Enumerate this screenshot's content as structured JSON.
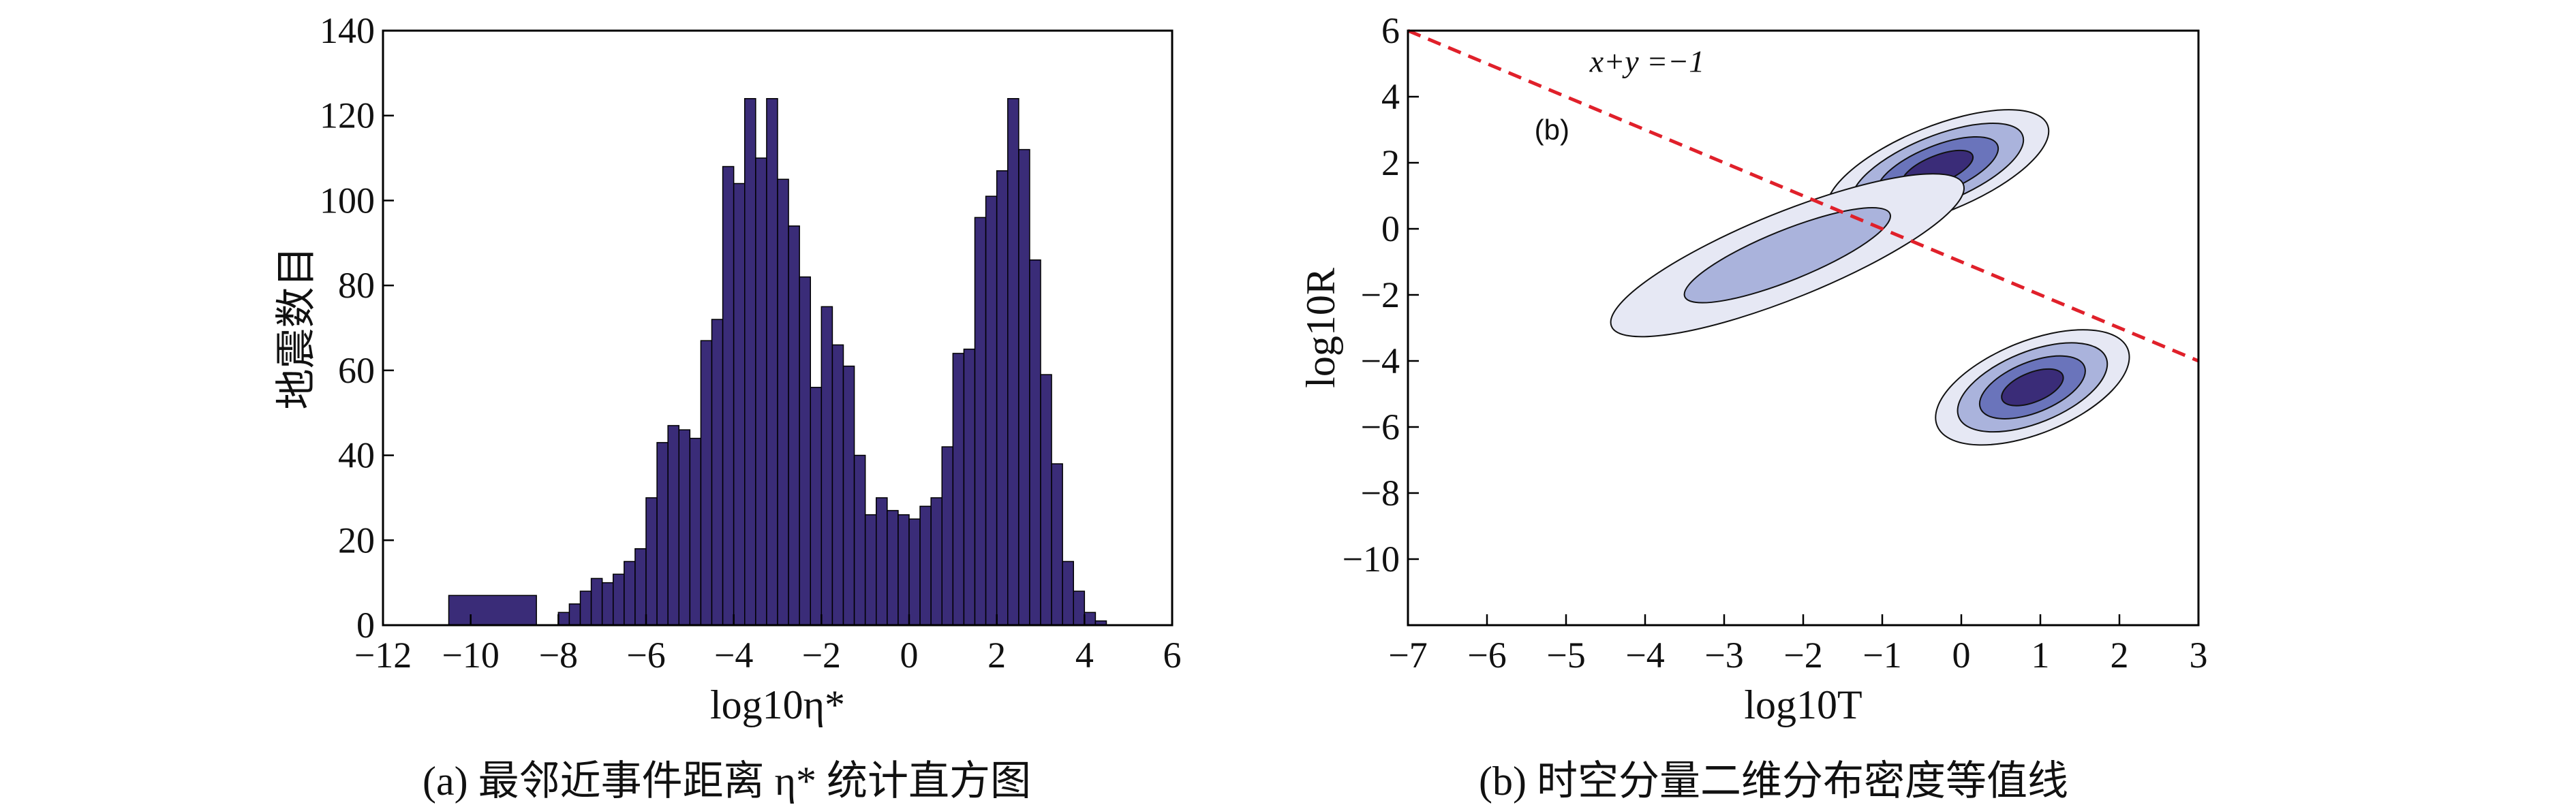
{
  "captions": {
    "left": "(a) 最邻近事件距离 η* 统计直方图",
    "right": "(b) 时空分量二维分布密度等值线"
  },
  "chart_data": [
    {
      "type": "bar",
      "title": "",
      "xlabel": "log10η*",
      "ylabel": "地震数目",
      "xlim": [
        -12,
        6
      ],
      "ylim": [
        0,
        140
      ],
      "xticks": [
        "−12",
        "−10",
        "−8",
        "−6",
        "−4",
        "−2",
        "0",
        "2",
        "4",
        "6"
      ],
      "yticks": [
        "0",
        "20",
        "40",
        "60",
        "80",
        "100",
        "120",
        "140"
      ],
      "bar_color": "#3a2c78",
      "bins": [
        {
          "x0": -10.5,
          "x1": -8.5,
          "count": 7
        },
        {
          "x0": -8.0,
          "x1": -7.75,
          "count": 3
        },
        {
          "x0": -7.75,
          "x1": -7.5,
          "count": 5
        },
        {
          "x0": -7.5,
          "x1": -7.25,
          "count": 8
        },
        {
          "x0": -7.25,
          "x1": -7.0,
          "count": 11
        },
        {
          "x0": -7.0,
          "x1": -6.75,
          "count": 10
        },
        {
          "x0": -6.75,
          "x1": -6.5,
          "count": 12
        },
        {
          "x0": -6.5,
          "x1": -6.25,
          "count": 15
        },
        {
          "x0": -6.25,
          "x1": -6.0,
          "count": 18
        },
        {
          "x0": -6.0,
          "x1": -5.75,
          "count": 30
        },
        {
          "x0": -5.75,
          "x1": -5.5,
          "count": 43
        },
        {
          "x0": -5.5,
          "x1": -5.25,
          "count": 47
        },
        {
          "x0": -5.25,
          "x1": -5.0,
          "count": 46
        },
        {
          "x0": -5.0,
          "x1": -4.75,
          "count": 44
        },
        {
          "x0": -4.75,
          "x1": -4.5,
          "count": 67
        },
        {
          "x0": -4.5,
          "x1": -4.25,
          "count": 72
        },
        {
          "x0": -4.25,
          "x1": -4.0,
          "count": 108
        },
        {
          "x0": -4.0,
          "x1": -3.75,
          "count": 104
        },
        {
          "x0": -3.75,
          "x1": -3.5,
          "count": 124
        },
        {
          "x0": -3.5,
          "x1": -3.25,
          "count": 110
        },
        {
          "x0": -3.25,
          "x1": -3.0,
          "count": 124
        },
        {
          "x0": -3.0,
          "x1": -2.75,
          "count": 105
        },
        {
          "x0": -2.75,
          "x1": -2.5,
          "count": 94
        },
        {
          "x0": -2.5,
          "x1": -2.25,
          "count": 82
        },
        {
          "x0": -2.25,
          "x1": -2.0,
          "count": 56
        },
        {
          "x0": -2.0,
          "x1": -1.75,
          "count": 75
        },
        {
          "x0": -1.75,
          "x1": -1.5,
          "count": 66
        },
        {
          "x0": -1.5,
          "x1": -1.25,
          "count": 61
        },
        {
          "x0": -1.25,
          "x1": -1.0,
          "count": 40
        },
        {
          "x0": -1.0,
          "x1": -0.75,
          "count": 26
        },
        {
          "x0": -0.75,
          "x1": -0.5,
          "count": 30
        },
        {
          "x0": -0.5,
          "x1": -0.25,
          "count": 27
        },
        {
          "x0": -0.25,
          "x1": 0.0,
          "count": 26
        },
        {
          "x0": 0.0,
          "x1": 0.25,
          "count": 25
        },
        {
          "x0": 0.25,
          "x1": 0.5,
          "count": 28
        },
        {
          "x0": 0.5,
          "x1": 0.75,
          "count": 30
        },
        {
          "x0": 0.75,
          "x1": 1.0,
          "count": 42
        },
        {
          "x0": 1.0,
          "x1": 1.25,
          "count": 64
        },
        {
          "x0": 1.25,
          "x1": 1.5,
          "count": 65
        },
        {
          "x0": 1.5,
          "x1": 1.75,
          "count": 96
        },
        {
          "x0": 1.75,
          "x1": 2.0,
          "count": 101
        },
        {
          "x0": 2.0,
          "x1": 2.25,
          "count": 107
        },
        {
          "x0": 2.25,
          "x1": 2.5,
          "count": 124
        },
        {
          "x0": 2.5,
          "x1": 2.75,
          "count": 112
        },
        {
          "x0": 2.75,
          "x1": 3.0,
          "count": 86
        },
        {
          "x0": 3.0,
          "x1": 3.25,
          "count": 59
        },
        {
          "x0": 3.25,
          "x1": 3.5,
          "count": 38
        },
        {
          "x0": 3.5,
          "x1": 3.75,
          "count": 15
        },
        {
          "x0": 3.75,
          "x1": 4.0,
          "count": 8
        },
        {
          "x0": 4.0,
          "x1": 4.25,
          "count": 3
        },
        {
          "x0": 4.25,
          "x1": 4.5,
          "count": 1
        }
      ]
    },
    {
      "type": "heatmap",
      "title": "",
      "panel_label": "(b)",
      "xlabel": "log10T",
      "ylabel": "log10R",
      "xlim": [
        -7,
        3
      ],
      "ylim": [
        -12,
        6
      ],
      "xticks": [
        "−7",
        "−6",
        "−5",
        "−4",
        "−3",
        "−2",
        "−1",
        "0",
        "1",
        "2",
        "3"
      ],
      "yticks": [
        "6",
        "4",
        "2",
        "0",
        "−2",
        "−4",
        "−6",
        "−8",
        "−10"
      ],
      "reference_line": {
        "label": "x+y =−1",
        "color": "#e0202a",
        "style": "dashed",
        "points": [
          [
            -7,
            6
          ],
          [
            3,
            -4
          ]
        ]
      },
      "contour_levels": [
        "#e6e8f4",
        "#aab3dc",
        "#6a74bb",
        "#3a2c78"
      ],
      "clusters": [
        {
          "name": "upper",
          "center": [
            -0.3,
            1.8
          ],
          "extent": [
            1.5,
            1.3
          ],
          "peak": 4
        },
        {
          "name": "middle",
          "center": [
            -2.2,
            -0.8
          ],
          "extent": [
            2.4,
            1.3
          ],
          "peak": 2
        },
        {
          "name": "lower",
          "center": [
            0.9,
            -4.8
          ],
          "extent": [
            1.3,
            1.4
          ],
          "peak": 4
        }
      ]
    }
  ]
}
